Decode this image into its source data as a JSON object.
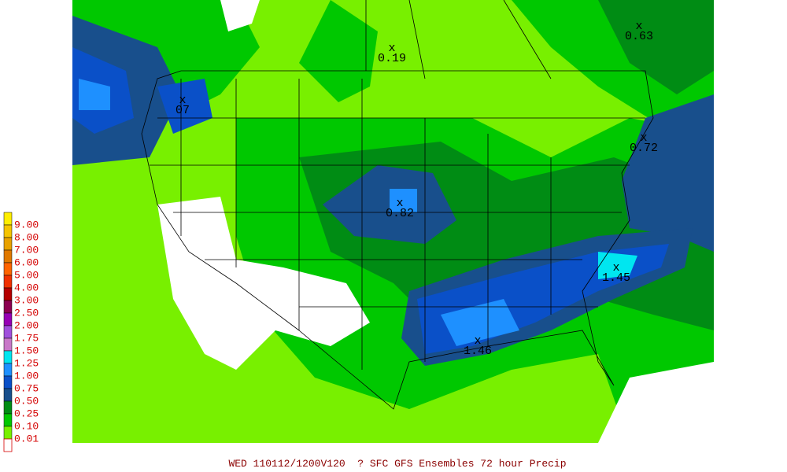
{
  "legend": {
    "items": [
      {
        "label": "9.00",
        "color": "#ffee00"
      },
      {
        "label": "8.00",
        "color": "#f5c400"
      },
      {
        "label": "7.00",
        "color": "#e8a200"
      },
      {
        "label": "6.00",
        "color": "#e07800"
      },
      {
        "label": "5.00",
        "color": "#ff6400"
      },
      {
        "label": "4.00",
        "color": "#f03000"
      },
      {
        "label": "3.00",
        "color": "#b40000"
      },
      {
        "label": "2.50",
        "color": "#8c0050"
      },
      {
        "label": "2.00",
        "color": "#9600b4"
      },
      {
        "label": "1.75",
        "color": "#a050dc"
      },
      {
        "label": "1.50",
        "color": "#c878c8"
      },
      {
        "label": "1.25",
        "color": "#00e6f0"
      },
      {
        "label": "1.00",
        "color": "#1e90ff"
      },
      {
        "label": "0.75",
        "color": "#0a50c8"
      },
      {
        "label": "0.50",
        "color": "#184f8c"
      },
      {
        "label": "0.25",
        "color": "#008c14"
      },
      {
        "label": "0.10",
        "color": "#00c800"
      },
      {
        "label": "0.01",
        "color": "#78f000"
      }
    ],
    "none_color": "#ffffff"
  },
  "annotations": [
    {
      "label": "0.19"
    },
    {
      "label": "0.63"
    },
    {
      "label": "07"
    },
    {
      "label": "0.72"
    },
    {
      "label": "0.82"
    },
    {
      "label": "1.45"
    },
    {
      "label": "1.46"
    }
  ],
  "footer": {
    "title": "WED 110112/1200V120  ? SFC GFS Ensembles 72 hour Precip"
  }
}
